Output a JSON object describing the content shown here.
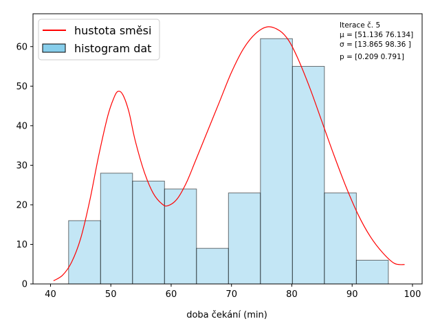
{
  "chart_data": {
    "type": "bar",
    "title": "",
    "xlabel": "doba čekání (min)",
    "ylabel": "",
    "xlim": [
      37.1,
      101.6
    ],
    "ylim": [
      0,
      68.3
    ],
    "xticks": [
      40,
      50,
      60,
      70,
      80,
      90,
      100
    ],
    "yticks": [
      0,
      10,
      20,
      30,
      40,
      50,
      60
    ],
    "grid": false,
    "legend_position": "top-left",
    "colors": {
      "histogram_fill": "#87ceeb",
      "histogram_edge": "#000000",
      "curve": "#ff0000"
    },
    "histogram": {
      "name": "histogram dat",
      "bin_edges": [
        43.0,
        48.3,
        53.6,
        58.9,
        64.2,
        69.5,
        74.8,
        80.1,
        85.4,
        90.7,
        96.0
      ],
      "counts": [
        16,
        28,
        26,
        24,
        9,
        23,
        62,
        55,
        23,
        6
      ]
    },
    "curve": {
      "name": "hustota směsi",
      "x": [
        40.5,
        42,
        43.5,
        45,
        46.5,
        48,
        49.5,
        50.5,
        51.2,
        52,
        53,
        54,
        55.5,
        57,
        58.5,
        59.5,
        61,
        62.5,
        64,
        66,
        68,
        70,
        72,
        74,
        76,
        78,
        79.5,
        81,
        83,
        85,
        87,
        89,
        91,
        93,
        95,
        97,
        98.7
      ],
      "y": [
        0.8,
        2.2,
        5.5,
        11.5,
        21,
        32.5,
        42.5,
        47.0,
        48.7,
        47.8,
        43.5,
        36.5,
        28.5,
        23.0,
        20.2,
        19.8,
        21.5,
        25.5,
        31.0,
        38.5,
        46.0,
        53.5,
        59.5,
        63.3,
        65.0,
        64.0,
        61.5,
        57.0,
        49.5,
        41.0,
        32.5,
        24.5,
        17.5,
        12.0,
        8.0,
        5.2,
        4.9
      ]
    },
    "annotation": {
      "line1": "Iterace č. 5",
      "line2": "μ = [51.136 76.134]",
      "line3": "σ = [13.865 98.36 ]",
      "line4": "p = [0.209 0.791]"
    }
  }
}
